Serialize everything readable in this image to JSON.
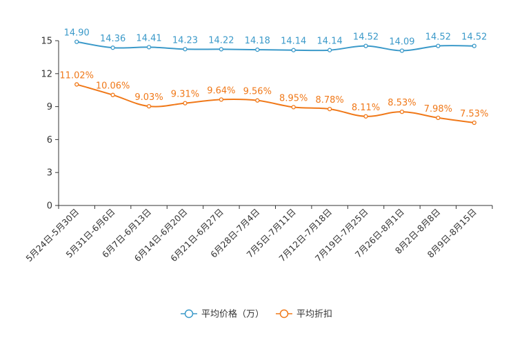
{
  "chart_data": {
    "type": "line",
    "title": "",
    "xlabel": "",
    "ylabel": "",
    "ylim": [
      0,
      15
    ],
    "yticks": [
      "0",
      "3",
      "6",
      "9",
      "12",
      "15"
    ],
    "categories": [
      "5月24日-5月30日",
      "5月31日-6月6日",
      "6月7日-6月13日",
      "6月14日-6月20日",
      "6月21日-6月27日",
      "6月28日-7月4日",
      "7月5日-7月11日",
      "7月12日-7月18日",
      "7月19日-7月25日",
      "7月26日-8月1日",
      "8月2日-8月8日",
      "8月9日-8月15日"
    ],
    "series": [
      {
        "name": "平均价格（万）",
        "color": "#3a99c9",
        "values": [
          14.9,
          14.36,
          14.41,
          14.23,
          14.22,
          14.18,
          14.14,
          14.14,
          14.52,
          14.09,
          14.52,
          14.52
        ],
        "labels": [
          "14.90",
          "14.36",
          "14.41",
          "14.23",
          "14.22",
          "14.18",
          "14.14",
          "14.14",
          "14.52",
          "14.09",
          "14.52",
          "14.52"
        ]
      },
      {
        "name": "平均折扣",
        "color": "#f07818",
        "values": [
          11.02,
          10.06,
          9.03,
          9.31,
          9.64,
          9.56,
          8.95,
          8.78,
          8.11,
          8.53,
          7.98,
          7.53
        ],
        "labels": [
          "11.02%",
          "10.06%",
          "9.03%",
          "9.31%",
          "9.64%",
          "9.56%",
          "8.95%",
          "8.78%",
          "8.11%",
          "8.53%",
          "7.98%",
          "7.53%"
        ]
      }
    ],
    "grid": false,
    "legend_position": "bottom-center"
  }
}
